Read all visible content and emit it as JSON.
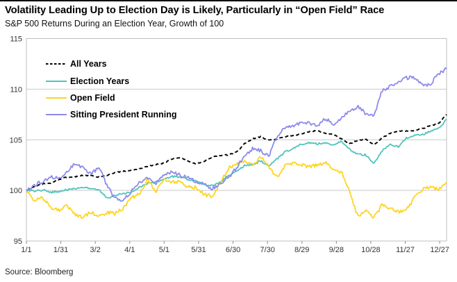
{
  "page": {
    "title": "Volatility Leading Up to Election Day is Likely, Particularly in “Open Field” Race",
    "subtitle": "S&P 500 Returns During an Election Year, Growth of 100",
    "source": "Source: Bloomberg"
  },
  "colors": {
    "all_years": "#000000",
    "election_years": "#4FC4BD",
    "open_field": "#FFD41E",
    "sitting_president": "#8C8BEB",
    "gridline": "#C9C9C9",
    "plot_border": "#BFBFBF",
    "tick_mark": "#8C8C8C",
    "tick_label": "#333333"
  },
  "chart_data": {
    "type": "line",
    "title": "Volatility Leading Up to Election Day is Likely, Particularly in “Open Field” Race",
    "subtitle": "S&P 500 Returns During an Election Year, Growth of 100",
    "x_axis": {
      "total_days": 366,
      "tick_interval_days": 30,
      "tick_labels": [
        "1/1",
        "1/31",
        "3/2",
        "4/1",
        "5/1",
        "5/31",
        "6/30",
        "7/30",
        "8/29",
        "9/28",
        "10/28",
        "11/27",
        "12/27"
      ]
    },
    "y_axis": {
      "lim": [
        95,
        115
      ],
      "ticks": [
        95,
        100,
        105,
        110,
        115
      ]
    },
    "grid": {
      "horizontal": true,
      "vertical": false
    },
    "legend": {
      "position": "top-left"
    },
    "sample_note": "values sampled weekly, growth of 100 from Jan 1 to Dec 31",
    "series": [
      {
        "name": "All Years",
        "color": "#000000",
        "dash": "5 3.5",
        "width": 1.9,
        "jitter": 0.05,
        "values": [
          100,
          100.4,
          100.65,
          100.7,
          101.1,
          101.3,
          101.35,
          101.5,
          101.45,
          101.3,
          101.5,
          101.75,
          101.9,
          102.0,
          102.15,
          102.35,
          102.55,
          102.7,
          103.1,
          103.25,
          102.9,
          102.6,
          102.9,
          103.3,
          103.45,
          103.5,
          103.8,
          104.6,
          105.1,
          105.3,
          104.95,
          105.1,
          105.3,
          105.4,
          105.6,
          105.8,
          105.9,
          105.6,
          105.5,
          105.1,
          104.6,
          104.95,
          105.05,
          104.5,
          105.15,
          105.65,
          105.85,
          105.85,
          105.9,
          106.1,
          106.4,
          106.6,
          107.5
        ]
      },
      {
        "name": "Election Years",
        "color": "#4FC4BD",
        "dash": "",
        "width": 1.8,
        "jitter": 0.09,
        "values": [
          100,
          99.9,
          100.05,
          99.8,
          99.9,
          100.05,
          100.15,
          100.3,
          100.15,
          100.05,
          99.25,
          99.5,
          99.7,
          99.8,
          100.3,
          100.7,
          100.8,
          101.1,
          101.4,
          101.3,
          101.05,
          100.9,
          100.6,
          100.5,
          100.8,
          101.5,
          101.85,
          102.45,
          102.55,
          102.9,
          102.4,
          103.1,
          103.8,
          104.15,
          104.6,
          104.7,
          104.6,
          104.7,
          104.5,
          104.85,
          104.05,
          103.6,
          103.5,
          102.7,
          103.9,
          104.6,
          104.3,
          105.15,
          105.4,
          105.5,
          105.85,
          106.1,
          107.0
        ]
      },
      {
        "name": "Open Field",
        "color": "#FFD41E",
        "dash": "",
        "width": 1.8,
        "jitter": 0.18,
        "values": [
          100,
          99.0,
          99.25,
          98.35,
          98.0,
          98.45,
          97.65,
          97.3,
          97.9,
          97.45,
          97.8,
          97.7,
          98.3,
          99.3,
          99.6,
          101.1,
          99.9,
          101.0,
          100.9,
          100.8,
          100.35,
          100.3,
          99.6,
          99.4,
          100.7,
          102.2,
          102.55,
          102.8,
          102.45,
          103.35,
          102.3,
          101.3,
          102.45,
          102.7,
          102.55,
          102.3,
          102.55,
          102.7,
          102.2,
          101.75,
          99.9,
          97.4,
          98.0,
          97.3,
          98.55,
          98.2,
          97.9,
          98.0,
          99.25,
          100.15,
          100.3,
          100.15,
          100.8
        ]
      },
      {
        "name": "Sitting President Running",
        "color": "#8C8BEB",
        "dash": "",
        "width": 1.8,
        "jitter": 0.18,
        "values": [
          100,
          100.5,
          100.9,
          101.3,
          101.2,
          101.8,
          102.6,
          102.3,
          101.6,
          102.3,
          100.4,
          99.2,
          99.0,
          99.9,
          100.8,
          101.2,
          100.7,
          101.5,
          101.9,
          101.5,
          101.3,
          100.85,
          100.6,
          100.2,
          100.6,
          101.3,
          102.2,
          103.5,
          104.1,
          103.9,
          103.4,
          105.3,
          106.2,
          106.4,
          106.6,
          106.7,
          106.3,
          107.1,
          106.5,
          107.2,
          107.8,
          108.3,
          107.6,
          107.3,
          109.8,
          110.3,
          110.6,
          111.1,
          111.2,
          110.4,
          110.5,
          111.5,
          112.0
        ]
      }
    ]
  }
}
